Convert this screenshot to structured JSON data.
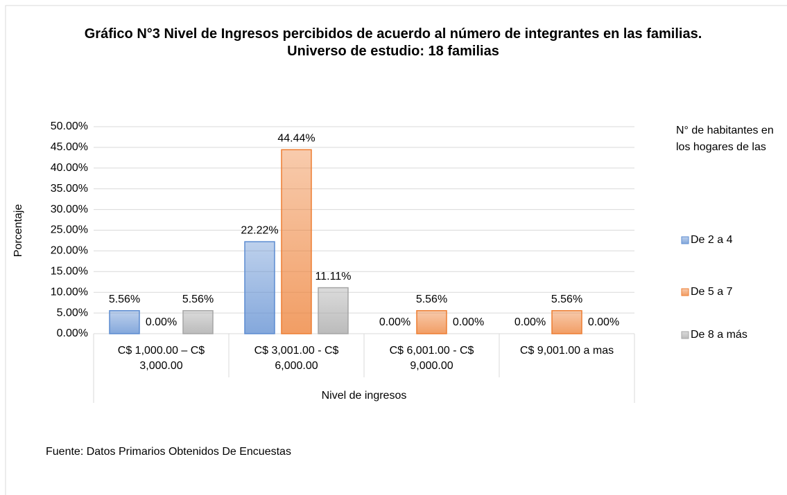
{
  "chart_data": {
    "type": "bar",
    "title": "Gráfico N°3  Nivel de Ingresos percibidos de acuerdo al número de integrantes en las familias. Universo de estudio: 18 familias",
    "x_label": "Nivel de ingresos",
    "y_label": "Porcentaje",
    "legend_title": "N° de habitantes en los hogares de las",
    "source": "Fuente: Datos Primarios Obtenidos De Encuestas",
    "categories": [
      "C$ 1,000.00 – C$ 3,000.00",
      "C$ 3,001.00 - C$ 6,000.00",
      "C$ 6,001.00 - C$ 9,000.00",
      "C$ 9,001.00 a mas"
    ],
    "series": [
      {
        "name": "De 2 a 4",
        "color": "#5b8bd0",
        "values": [
          5.56,
          22.22,
          0,
          0
        ],
        "value_labels": [
          "5.56%",
          "22.22%",
          "0.00%",
          "0.00%"
        ]
      },
      {
        "name": "De 5 a 7",
        "color": "#ed7d31",
        "values": [
          0,
          44.44,
          5.56,
          5.56
        ],
        "value_labels": [
          "0.00%",
          "44.44%",
          "5.56%",
          "5.56%"
        ]
      },
      {
        "name": "De 8 a más",
        "color": "#a5a5a5",
        "values": [
          5.56,
          11.11,
          0,
          0
        ],
        "value_labels": [
          "5.56%",
          "11.11%",
          "0.00%",
          "0.00%"
        ]
      }
    ],
    "ylim": [
      0,
      50
    ],
    "yticks": [
      {
        "value": 0,
        "label": "0.00%"
      },
      {
        "value": 5,
        "label": "5.00%"
      },
      {
        "value": 10,
        "label": "10.00%"
      },
      {
        "value": 15,
        "label": "15.00%"
      },
      {
        "value": 20,
        "label": "20.00%"
      },
      {
        "value": 25,
        "label": "25.00%"
      },
      {
        "value": 30,
        "label": "30.00%"
      },
      {
        "value": 35,
        "label": "35.00%"
      },
      {
        "value": 40,
        "label": "40.00%"
      },
      {
        "value": 45,
        "label": "45.00%"
      },
      {
        "value": 50,
        "label": "50.00%"
      }
    ],
    "grid": true,
    "legend": "right"
  }
}
